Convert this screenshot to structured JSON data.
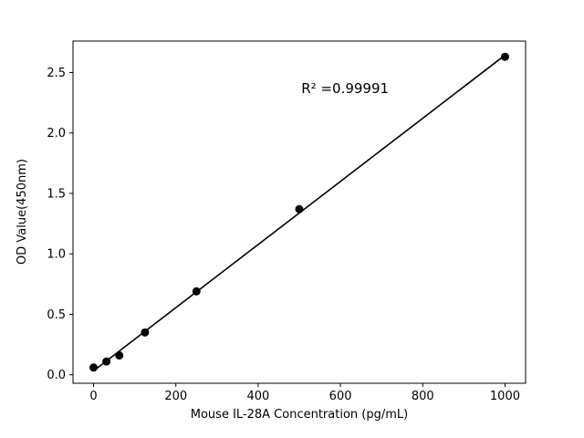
{
  "chart_data": {
    "type": "scatter",
    "x": [
      0,
      31.25,
      62.5,
      125,
      250,
      500,
      1000
    ],
    "y": [
      0.06,
      0.11,
      0.16,
      0.35,
      0.69,
      1.37,
      2.63
    ],
    "title": "",
    "xlabel": "Mouse IL-28A Concentration (pg/mL)",
    "ylabel": "OD Value(450nm)",
    "annotation": "R² =0.99991",
    "annotation_xy": [
      505,
      2.33
    ],
    "xlim": [
      -50,
      1050
    ],
    "ylim": [
      -0.07,
      2.76
    ],
    "xticks": [
      0,
      200,
      400,
      600,
      800,
      1000
    ],
    "xtick_labels": [
      "0",
      "200",
      "400",
      "600",
      "800",
      "1000"
    ],
    "yticks": [
      0.0,
      0.5,
      1.0,
      1.5,
      2.0,
      2.5
    ],
    "ytick_labels": [
      "0.0",
      "0.5",
      "1.0",
      "1.5",
      "2.0",
      "2.5"
    ],
    "grid": false,
    "legend": "none",
    "line_fit": true,
    "marker_color": "#000000",
    "line_color": "#000000",
    "background_color": "#ffffff",
    "axis_color": "#000000"
  }
}
